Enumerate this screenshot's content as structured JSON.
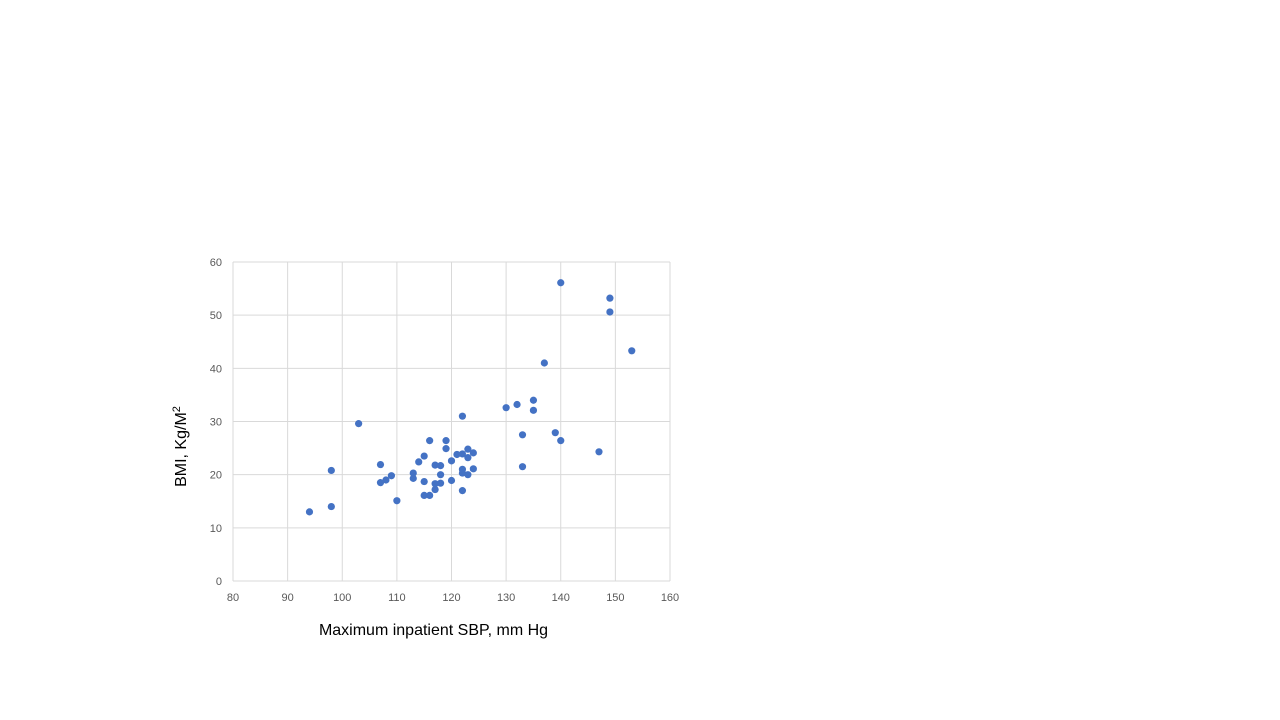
{
  "chart_data": {
    "type": "scatter",
    "title": "",
    "xlabel": "Maximum inpatient SBP, mm Hg",
    "ylabel": {
      "text": "BMI, Kg/M",
      "superscript": "2"
    },
    "xlim": [
      80,
      160
    ],
    "ylim": [
      0,
      60
    ],
    "x_ticks": [
      "80",
      "90",
      "100",
      "110",
      "120",
      "130",
      "140",
      "150",
      "160"
    ],
    "y_ticks": [
      "0",
      "10",
      "20",
      "30",
      "40",
      "50",
      "60"
    ],
    "grid": true,
    "legend": "none",
    "marker_color": "#4472c4",
    "grid_color": "#d9d9d9",
    "points": [
      [
        94,
        13
      ],
      [
        98,
        14
      ],
      [
        98,
        20.8
      ],
      [
        103,
        29.6
      ],
      [
        107,
        21.9
      ],
      [
        107,
        18.5
      ],
      [
        108,
        19
      ],
      [
        109,
        19.8
      ],
      [
        110,
        15.1
      ],
      [
        113,
        20.3
      ],
      [
        113,
        19.3
      ],
      [
        114,
        22.4
      ],
      [
        115,
        23.5
      ],
      [
        115,
        18.7
      ],
      [
        115,
        16.1
      ],
      [
        116,
        26.4
      ],
      [
        116,
        16.1
      ],
      [
        117,
        21.8
      ],
      [
        117,
        18.3
      ],
      [
        117,
        17.2
      ],
      [
        118,
        21.7
      ],
      [
        118,
        20
      ],
      [
        118,
        18.4
      ],
      [
        119,
        26.4
      ],
      [
        119,
        24.9
      ],
      [
        120,
        22.6
      ],
      [
        120,
        18.9
      ],
      [
        121,
        23.8
      ],
      [
        122,
        31
      ],
      [
        122,
        23.9
      ],
      [
        122,
        21
      ],
      [
        122,
        20.3
      ],
      [
        122,
        17
      ],
      [
        123,
        24.8
      ],
      [
        123,
        23.2
      ],
      [
        123,
        20
      ],
      [
        124,
        24.1
      ],
      [
        124,
        21.1
      ],
      [
        130,
        32.6
      ],
      [
        132,
        33.2
      ],
      [
        133,
        27.5
      ],
      [
        133,
        21.5
      ],
      [
        135,
        34
      ],
      [
        135,
        32.1
      ],
      [
        137,
        41
      ],
      [
        139,
        27.9
      ],
      [
        140,
        56.1
      ],
      [
        140,
        26.4
      ],
      [
        147,
        24.3
      ],
      [
        149,
        53.2
      ],
      [
        149,
        50.6
      ],
      [
        153,
        43.3
      ]
    ]
  }
}
